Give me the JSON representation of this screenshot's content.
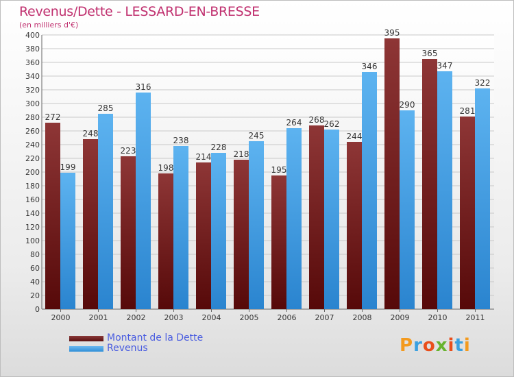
{
  "header": {
    "title": "Revenus/Dette - LESSARD-EN-BRESSE",
    "subtitle": "(en milliers d'€)"
  },
  "legend": {
    "debt_label": "Montant de la Dette",
    "revenue_label": "Revenus"
  },
  "logo": {
    "text": "Proxiti"
  },
  "colors": {
    "title": "#c0306f",
    "debt": "#7a1f1f",
    "revenue": "#4aa3e8",
    "legend_text": "#4a5de0"
  },
  "chart_data": {
    "type": "bar",
    "title": "Revenus/Dette - LESSARD-EN-BRESSE",
    "subtitle": "(en milliers d'€)",
    "categories": [
      "2000",
      "2001",
      "2002",
      "2003",
      "2004",
      "2005",
      "2006",
      "2007",
      "2008",
      "2009",
      "2010",
      "2011"
    ],
    "series": [
      {
        "name": "Montant de la Dette",
        "values": [
          272,
          248,
          223,
          198,
          214,
          218,
          195,
          268,
          244,
          395,
          365,
          281
        ]
      },
      {
        "name": "Revenus",
        "values": [
          199,
          285,
          316,
          238,
          228,
          245,
          264,
          262,
          346,
          290,
          347,
          322
        ]
      }
    ],
    "ylim": [
      0,
      400
    ],
    "yticks": [
      0,
      20,
      40,
      60,
      80,
      100,
      120,
      140,
      160,
      180,
      200,
      220,
      240,
      260,
      280,
      300,
      320,
      340,
      360,
      380,
      400
    ],
    "grid": true,
    "legend_position": "bottom-left"
  }
}
